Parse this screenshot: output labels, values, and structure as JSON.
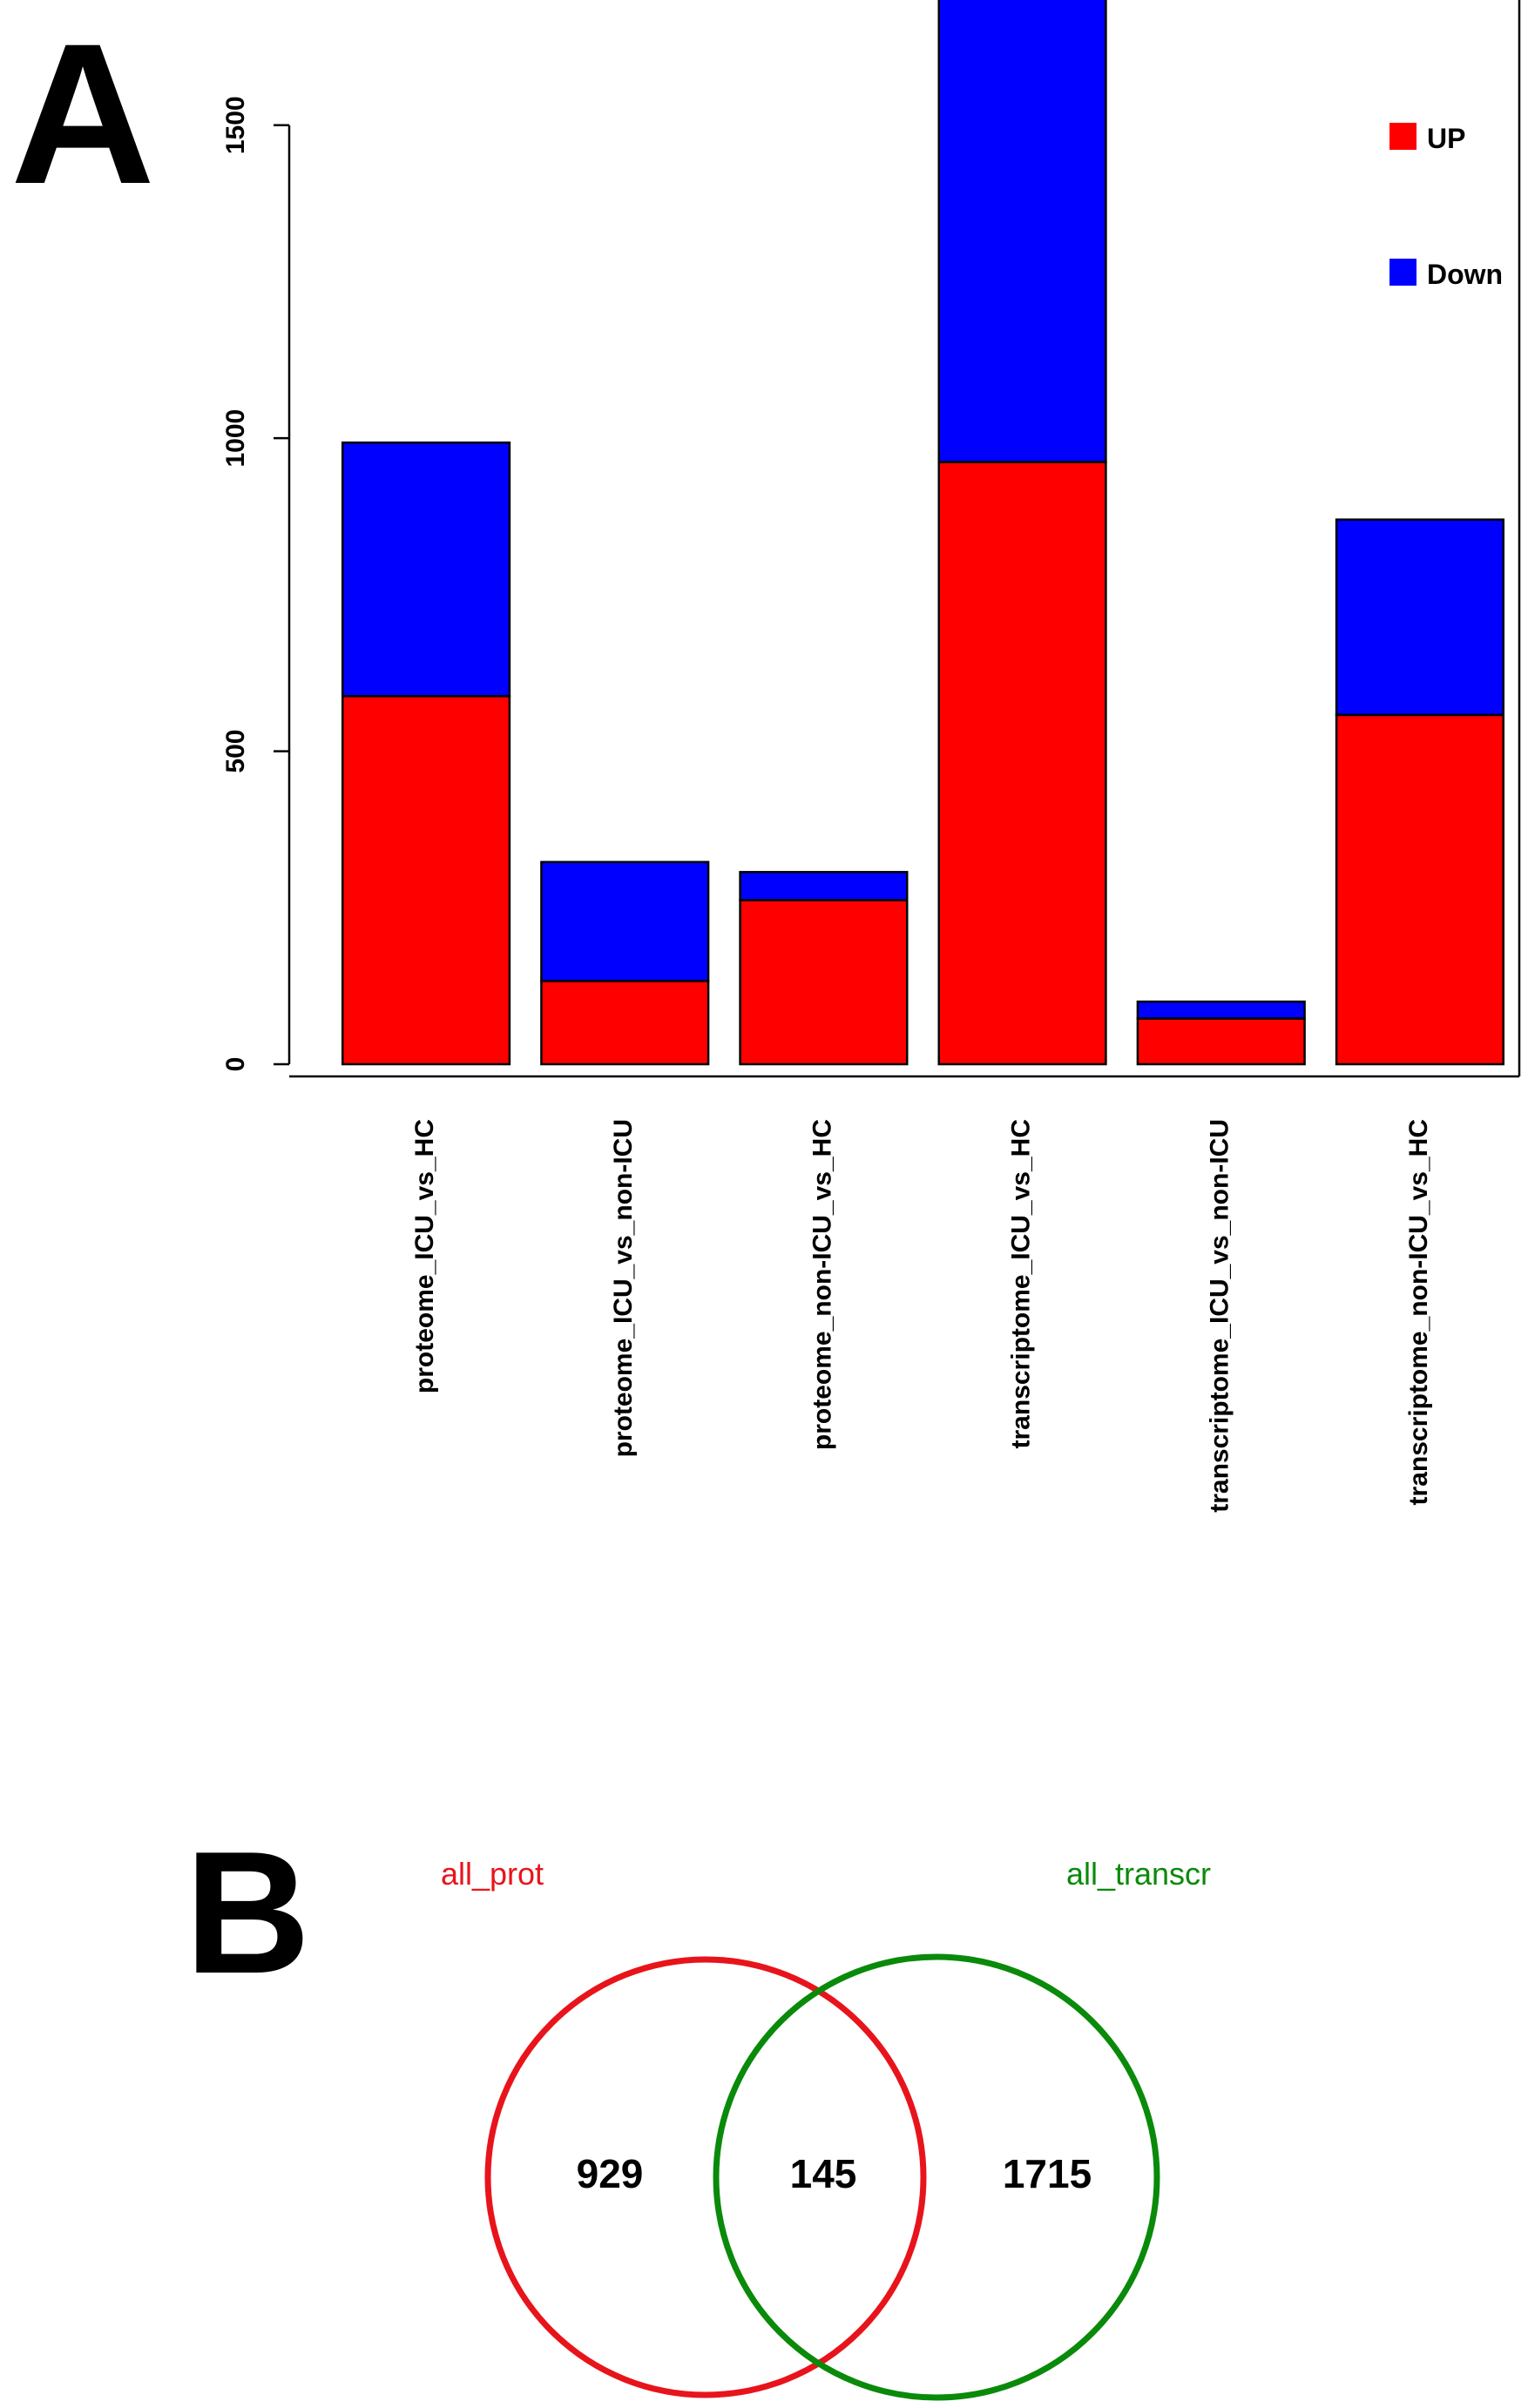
{
  "panels": {
    "a_label": "A",
    "b_label": "B"
  },
  "chart_data": [
    {
      "type": "bar",
      "stacked": true,
      "categories": [
        "proteome_ICU_vs_HC",
        "proteome_ICU_vs_non-ICU",
        "proteome_non-ICU_vs_HC",
        "transcriptome_ICU_vs_HC",
        "transcriptome_ICU_vs_non-ICU",
        "transcriptome_non-ICU_vs_HC"
      ],
      "series": [
        {
          "name": "UP",
          "color": "#ff0000",
          "values": [
            588,
            133,
            262,
            962,
            73,
            558
          ]
        },
        {
          "name": "Down",
          "color": "#0000ff",
          "values": [
            405,
            190,
            45,
            740,
            27,
            312
          ]
        }
      ],
      "ylim": [
        0,
        1700
      ],
      "yticks": [
        0,
        500,
        1000,
        1500
      ],
      "ytick_labels": [
        "0",
        "500",
        "1000",
        "1500"
      ],
      "legend": "top-right",
      "grid": false
    },
    {
      "type": "venn",
      "sets": [
        {
          "name": "all_prot",
          "color": "#e8141b"
        },
        {
          "name": "all_transcr",
          "color": "#0a8a0a"
        }
      ],
      "counts": {
        "only_first": "929",
        "intersection": "145",
        "only_second": "1715"
      }
    }
  ]
}
